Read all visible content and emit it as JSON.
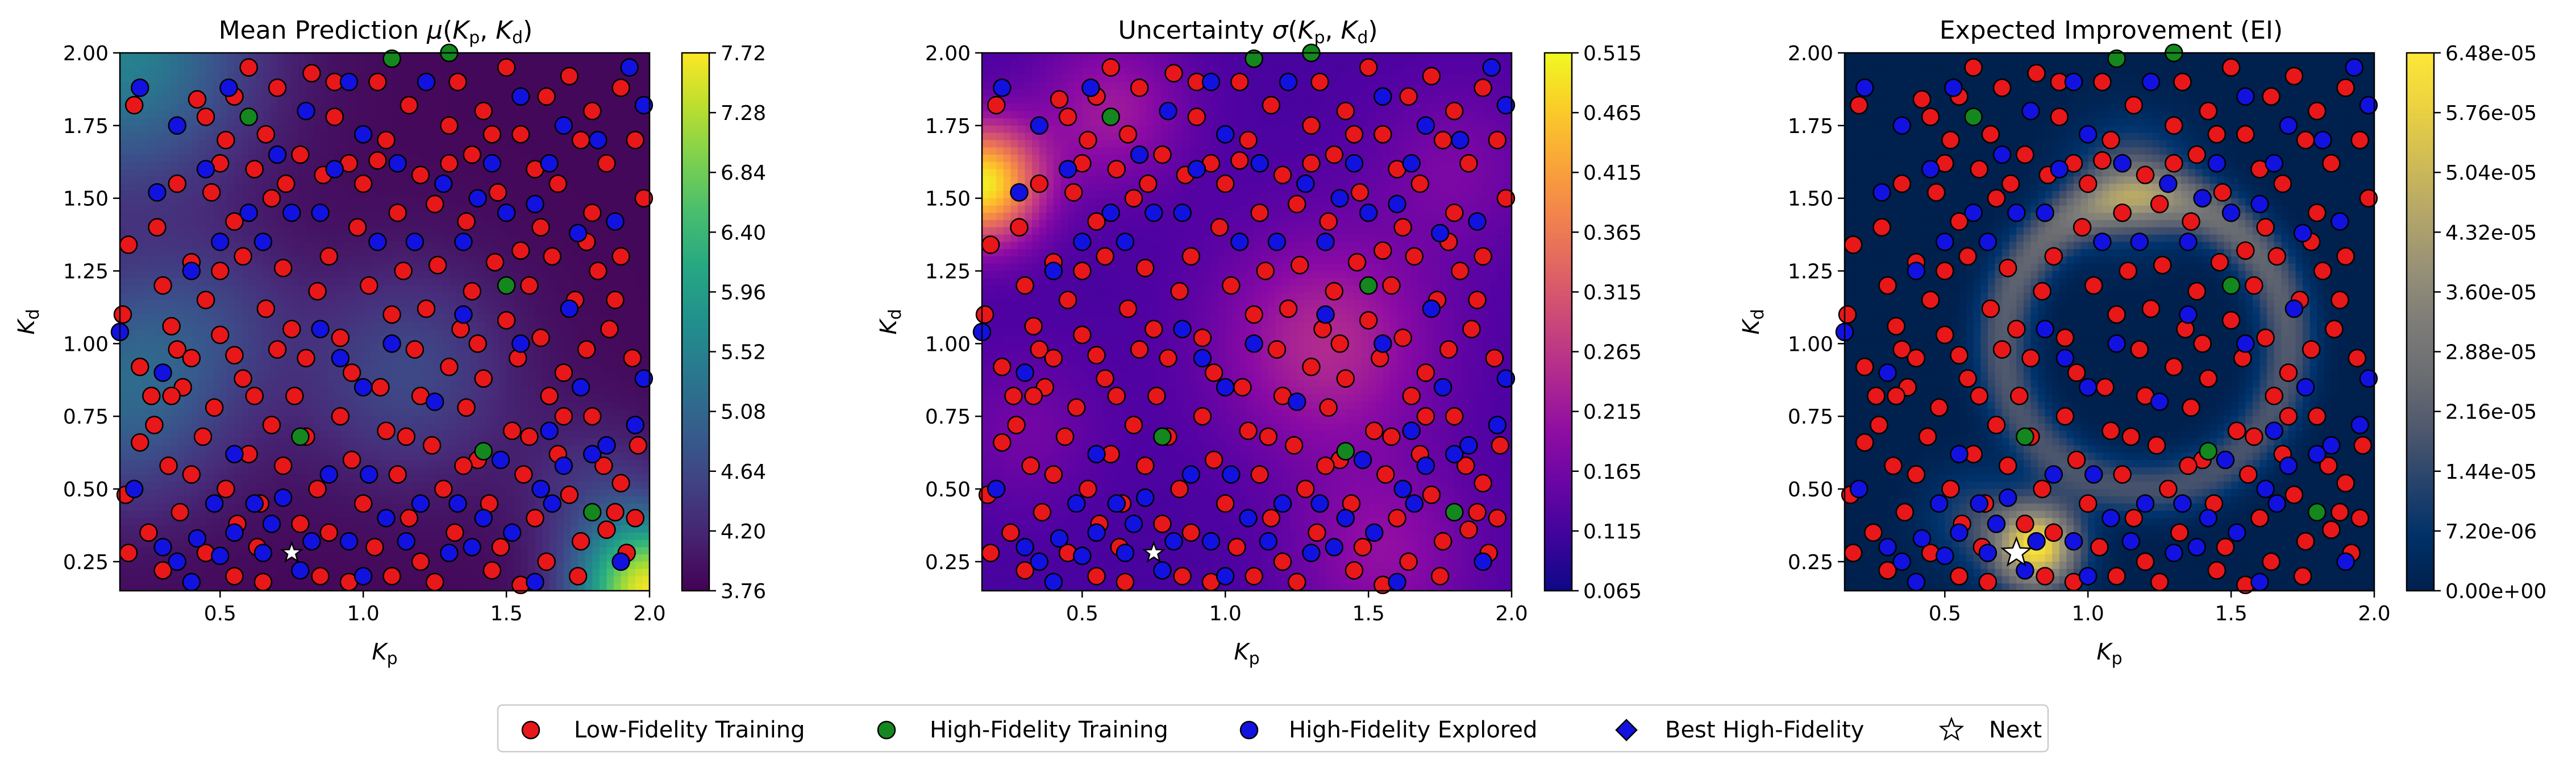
{
  "chart_data": [
    {
      "type": "heatmap",
      "panel": "mean",
      "title": "Mean Prediction",
      "xlabel": "K",
      "xlabel_sub": "p",
      "ylabel": "K",
      "ylabel_sub": "d",
      "xlim": [
        0.15,
        2.0
      ],
      "ylim": [
        0.15,
        2.0
      ],
      "xticks": [
        "0.5",
        "1.0",
        "1.5",
        "2.0"
      ],
      "yticks": [
        "0.25",
        "0.50",
        "0.75",
        "1.00",
        "1.25",
        "1.50",
        "1.75",
        "2.00"
      ],
      "colormap": "viridis",
      "colorbar_range": [
        3.76,
        7.72
      ],
      "colorbar_ticks": [
        "3.76",
        "4.20",
        "4.64",
        "5.08",
        "5.52",
        "5.96",
        "6.40",
        "6.84",
        "7.28",
        "7.72"
      ]
    },
    {
      "type": "heatmap",
      "panel": "uncertainty",
      "title": "Uncertainty",
      "xlabel": "K",
      "xlabel_sub": "p",
      "ylabel": "K",
      "ylabel_sub": "d",
      "xlim": [
        0.15,
        2.0
      ],
      "ylim": [
        0.15,
        2.0
      ],
      "xticks": [
        "0.5",
        "1.0",
        "1.5",
        "2.0"
      ],
      "yticks": [
        "0.25",
        "0.50",
        "0.75",
        "1.00",
        "1.25",
        "1.50",
        "1.75",
        "2.00"
      ],
      "colormap": "plasma",
      "colorbar_range": [
        0.065,
        0.515
      ],
      "colorbar_ticks": [
        "0.065",
        "0.115",
        "0.165",
        "0.215",
        "0.265",
        "0.315",
        "0.365",
        "0.415",
        "0.465",
        "0.515"
      ]
    },
    {
      "type": "heatmap",
      "panel": "ei",
      "title": "Expected Improvement (EI)",
      "xlabel": "K",
      "xlabel_sub": "p",
      "ylabel": "K",
      "ylabel_sub": "d",
      "xlim": [
        0.15,
        2.0
      ],
      "ylim": [
        0.15,
        2.0
      ],
      "xticks": [
        "0.5",
        "1.0",
        "1.5",
        "2.0"
      ],
      "yticks": [
        "0.25",
        "0.50",
        "0.75",
        "1.00",
        "1.25",
        "1.50",
        "1.75",
        "2.00"
      ],
      "colormap": "cividis",
      "colorbar_range": [
        0.0,
        6.48e-05
      ],
      "colorbar_ticks": [
        "0.00e+00",
        "7.20e-06",
        "1.44e-05",
        "2.16e-05",
        "2.88e-05",
        "3.60e-05",
        "4.32e-05",
        "5.04e-05",
        "5.76e-05",
        "6.48e-05"
      ]
    }
  ],
  "points": {
    "low_fidelity": [
      [
        0.2,
        1.82
      ],
      [
        0.18,
        1.34
      ],
      [
        0.16,
        1.1
      ],
      [
        0.22,
        0.66
      ],
      [
        0.17,
        0.48
      ],
      [
        0.28,
        1.4
      ],
      [
        0.3,
        1.2
      ],
      [
        0.33,
        1.06
      ],
      [
        0.35,
        0.98
      ],
      [
        0.26,
        0.82
      ],
      [
        0.37,
        0.85
      ],
      [
        0.42,
        1.84
      ],
      [
        0.45,
        1.78
      ],
      [
        0.47,
        1.52
      ],
      [
        0.5,
        1.62
      ],
      [
        0.52,
        1.7
      ],
      [
        0.55,
        1.42
      ],
      [
        0.58,
        1.3
      ],
      [
        0.62,
        1.6
      ],
      [
        0.66,
        1.72
      ],
      [
        0.68,
        1.5
      ],
      [
        0.7,
        1.88
      ],
      [
        0.73,
        1.55
      ],
      [
        0.78,
        1.65
      ],
      [
        0.82,
        1.93
      ],
      [
        0.86,
        1.58
      ],
      [
        0.9,
        1.78
      ],
      [
        0.95,
        1.62
      ],
      [
        1.0,
        1.55
      ],
      [
        1.05,
        1.9
      ],
      [
        1.08,
        1.7
      ],
      [
        1.12,
        1.45
      ],
      [
        1.16,
        1.82
      ],
      [
        1.2,
        1.58
      ],
      [
        1.25,
        1.48
      ],
      [
        1.3,
        1.75
      ],
      [
        1.33,
        1.9
      ],
      [
        1.38,
        1.65
      ],
      [
        1.42,
        1.8
      ],
      [
        1.47,
        1.52
      ],
      [
        1.5,
        1.95
      ],
      [
        1.55,
        1.72
      ],
      [
        1.6,
        1.6
      ],
      [
        1.64,
        1.85
      ],
      [
        1.68,
        1.55
      ],
      [
        1.72,
        1.92
      ],
      [
        1.76,
        1.7
      ],
      [
        1.8,
        1.45
      ],
      [
        1.85,
        1.62
      ],
      [
        1.9,
        1.88
      ],
      [
        1.95,
        1.7
      ],
      [
        1.98,
        1.5
      ],
      [
        0.4,
        1.28
      ],
      [
        0.45,
        1.15
      ],
      [
        0.5,
        1.03
      ],
      [
        0.55,
        0.96
      ],
      [
        0.58,
        0.88
      ],
      [
        0.62,
        0.82
      ],
      [
        0.66,
        1.12
      ],
      [
        0.72,
        1.26
      ],
      [
        0.75,
        1.05
      ],
      [
        0.8,
        0.95
      ],
      [
        0.84,
        1.18
      ],
      [
        0.88,
        1.3
      ],
      [
        0.92,
        1.02
      ],
      [
        0.96,
        0.9
      ],
      [
        1.02,
        1.2
      ],
      [
        1.06,
        0.85
      ],
      [
        1.1,
        1.1
      ],
      [
        1.14,
        1.25
      ],
      [
        1.18,
        0.98
      ],
      [
        1.22,
        1.12
      ],
      [
        1.26,
        1.27
      ],
      [
        1.3,
        0.92
      ],
      [
        1.34,
        1.05
      ],
      [
        1.38,
        1.18
      ],
      [
        1.42,
        0.88
      ],
      [
        1.46,
        1.28
      ],
      [
        1.5,
        1.08
      ],
      [
        1.54,
        0.95
      ],
      [
        1.58,
        1.2
      ],
      [
        1.62,
        1.02
      ],
      [
        1.66,
        1.3
      ],
      [
        1.7,
        0.9
      ],
      [
        1.74,
        1.15
      ],
      [
        1.78,
        0.98
      ],
      [
        1.82,
        1.25
      ],
      [
        1.86,
        1.05
      ],
      [
        1.9,
        1.3
      ],
      [
        1.94,
        0.95
      ],
      [
        0.22,
        0.92
      ],
      [
        0.27,
        0.72
      ],
      [
        0.32,
        0.58
      ],
      [
        0.36,
        0.42
      ],
      [
        0.4,
        0.55
      ],
      [
        0.44,
        0.68
      ],
      [
        0.48,
        0.78
      ],
      [
        0.52,
        0.5
      ],
      [
        0.56,
        0.38
      ],
      [
        0.6,
        0.62
      ],
      [
        0.64,
        0.45
      ],
      [
        0.68,
        0.72
      ],
      [
        0.72,
        0.58
      ],
      [
        0.76,
        0.82
      ],
      [
        0.8,
        0.68
      ],
      [
        0.84,
        0.5
      ],
      [
        0.88,
        0.35
      ],
      [
        0.92,
        0.75
      ],
      [
        0.96,
        0.6
      ],
      [
        1.0,
        0.45
      ],
      [
        1.04,
        0.3
      ],
      [
        1.08,
        0.7
      ],
      [
        1.12,
        0.55
      ],
      [
        1.16,
        0.4
      ],
      [
        1.2,
        0.25
      ],
      [
        1.24,
        0.65
      ],
      [
        1.28,
        0.5
      ],
      [
        1.32,
        0.35
      ],
      [
        1.36,
        0.78
      ],
      [
        1.4,
        0.6
      ],
      [
        1.44,
        0.45
      ],
      [
        1.48,
        0.3
      ],
      [
        1.52,
        0.7
      ],
      [
        1.56,
        0.55
      ],
      [
        1.6,
        0.4
      ],
      [
        1.64,
        0.25
      ],
      [
        1.68,
        0.62
      ],
      [
        1.72,
        0.48
      ],
      [
        1.76,
        0.32
      ],
      [
        1.8,
        0.75
      ],
      [
        1.84,
        0.58
      ],
      [
        1.88,
        0.42
      ],
      [
        1.92,
        0.28
      ],
      [
        1.96,
        0.65
      ],
      [
        0.25,
        0.35
      ],
      [
        0.3,
        0.22
      ],
      [
        0.45,
        0.28
      ],
      [
        0.55,
        0.2
      ],
      [
        0.65,
        0.18
      ],
      [
        0.85,
        0.2
      ],
      [
        0.95,
        0.18
      ],
      [
        1.1,
        0.2
      ],
      [
        1.25,
        0.18
      ],
      [
        1.45,
        0.22
      ],
      [
        1.55,
        0.17
      ],
      [
        1.75,
        0.2
      ],
      [
        1.85,
        0.36
      ],
      [
        0.18,
        0.28
      ],
      [
        0.35,
        1.55
      ],
      [
        0.6,
        1.95
      ],
      [
        0.98,
        1.4
      ],
      [
        1.36,
        1.42
      ],
      [
        1.62,
        1.4
      ],
      [
        1.88,
        1.15
      ],
      [
        0.7,
        0.98
      ],
      [
        1.2,
        0.82
      ],
      [
        1.4,
        1.0
      ],
      [
        1.65,
        0.82
      ],
      [
        0.33,
        0.82
      ],
      [
        0.5,
        1.25
      ],
      [
        1.05,
        1.63
      ],
      [
        1.3,
        1.62
      ],
      [
        1.55,
        1.32
      ],
      [
        1.78,
        1.35
      ],
      [
        0.63,
        0.3
      ],
      [
        0.78,
        0.38
      ],
      [
        1.15,
        0.68
      ],
      [
        1.35,
        0.58
      ],
      [
        1.58,
        0.68
      ],
      [
        1.7,
        0.75
      ],
      [
        1.9,
        0.52
      ],
      [
        1.95,
        0.4
      ],
      [
        0.4,
        0.95
      ],
      [
        0.9,
        1.9
      ],
      [
        1.45,
        1.72
      ],
      [
        1.8,
        1.8
      ],
      [
        0.55,
        1.85
      ]
    ],
    "high_fidelity": [
      [
        0.6,
        1.78
      ],
      [
        1.1,
        1.98
      ],
      [
        0.78,
        0.68
      ],
      [
        1.42,
        0.63
      ],
      [
        1.8,
        0.42
      ],
      [
        1.5,
        1.2
      ],
      [
        1.3,
        2.0
      ]
    ],
    "explored": [
      [
        0.15,
        1.04
      ],
      [
        0.22,
        1.88
      ],
      [
        0.28,
        1.52
      ],
      [
        0.35,
        1.75
      ],
      [
        0.4,
        1.25
      ],
      [
        0.45,
        1.6
      ],
      [
        0.5,
        1.35
      ],
      [
        0.53,
        1.88
      ],
      [
        0.6,
        1.45
      ],
      [
        0.65,
        1.35
      ],
      [
        0.7,
        1.65
      ],
      [
        0.75,
        1.45
      ],
      [
        0.8,
        1.8
      ],
      [
        0.85,
        1.45
      ],
      [
        0.9,
        1.6
      ],
      [
        0.95,
        1.9
      ],
      [
        1.0,
        1.72
      ],
      [
        1.05,
        1.35
      ],
      [
        1.12,
        1.62
      ],
      [
        1.18,
        1.35
      ],
      [
        1.22,
        1.9
      ],
      [
        1.28,
        1.55
      ],
      [
        1.35,
        1.35
      ],
      [
        1.4,
        1.5
      ],
      [
        1.45,
        1.62
      ],
      [
        1.5,
        1.45
      ],
      [
        1.55,
        1.85
      ],
      [
        1.6,
        1.48
      ],
      [
        1.65,
        1.62
      ],
      [
        1.7,
        1.75
      ],
      [
        1.75,
        1.38
      ],
      [
        1.82,
        1.7
      ],
      [
        1.88,
        1.42
      ],
      [
        1.93,
        1.95
      ],
      [
        1.98,
        1.82
      ],
      [
        0.2,
        0.5
      ],
      [
        0.3,
        0.3
      ],
      [
        0.35,
        0.25
      ],
      [
        0.42,
        0.33
      ],
      [
        0.48,
        0.45
      ],
      [
        0.5,
        0.27
      ],
      [
        0.55,
        0.35
      ],
      [
        0.62,
        0.45
      ],
      [
        0.65,
        0.28
      ],
      [
        0.68,
        0.38
      ],
      [
        0.72,
        0.47
      ],
      [
        0.78,
        0.22
      ],
      [
        0.82,
        0.32
      ],
      [
        0.88,
        0.55
      ],
      [
        0.92,
        0.95
      ],
      [
        0.95,
        0.32
      ],
      [
        1.0,
        0.85
      ],
      [
        1.02,
        0.55
      ],
      [
        1.08,
        0.4
      ],
      [
        1.15,
        0.32
      ],
      [
        1.2,
        0.45
      ],
      [
        1.25,
        0.8
      ],
      [
        1.3,
        0.28
      ],
      [
        1.33,
        0.45
      ],
      [
        1.38,
        0.3
      ],
      [
        1.42,
        0.4
      ],
      [
        1.48,
        0.6
      ],
      [
        1.52,
        0.35
      ],
      [
        1.55,
        1.0
      ],
      [
        1.62,
        0.5
      ],
      [
        1.66,
        0.45
      ],
      [
        1.72,
        1.12
      ],
      [
        1.76,
        0.85
      ],
      [
        1.8,
        0.62
      ],
      [
        1.85,
        0.65
      ],
      [
        1.9,
        0.25
      ],
      [
        1.95,
        0.72
      ],
      [
        1.98,
        0.88
      ],
      [
        0.4,
        0.18
      ],
      [
        1.0,
        0.2
      ],
      [
        1.6,
        0.18
      ],
      [
        0.3,
        0.9
      ],
      [
        0.55,
        0.62
      ],
      [
        0.85,
        1.05
      ],
      [
        1.1,
        1.0
      ],
      [
        1.35,
        1.1
      ],
      [
        1.65,
        0.7
      ],
      [
        1.7,
        0.58
      ]
    ],
    "next": [
      0.75,
      0.28
    ]
  },
  "legend": [
    {
      "label": "Low-Fidelity Training",
      "marker": "circle",
      "color": "#e8171a"
    },
    {
      "label": "High-Fidelity Training",
      "marker": "circle",
      "color": "#14871e"
    },
    {
      "label": "High-Fidelity Explored",
      "marker": "circle",
      "color": "#1212e0"
    },
    {
      "label": "Best High-Fidelity",
      "marker": "diamond",
      "color": "#1212e0"
    },
    {
      "label": "Next",
      "marker": "star",
      "color": "#ffffff"
    }
  ]
}
